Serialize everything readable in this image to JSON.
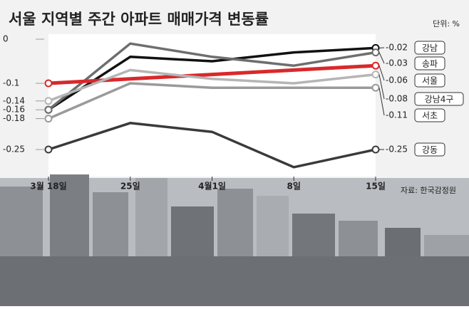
{
  "chart_data": {
    "type": "line",
    "title": "서울 지역별 주간 아파트 매매가격 변동률",
    "unit": "단위: %",
    "source": "자료: 한국감정원",
    "categories": [
      "3월 18일",
      "25일",
      "4월1일",
      "8일",
      "15일"
    ],
    "ylim": [
      -0.3,
      0
    ],
    "yticks": [
      0,
      -0.1,
      -0.14,
      -0.16,
      -0.18,
      -0.25
    ],
    "series": [
      {
        "name": "강남",
        "color": "#111111",
        "values": [
          -0.16,
          -0.04,
          -0.05,
          -0.03,
          -0.02
        ]
      },
      {
        "name": "송파",
        "color": "#6e6e6e",
        "values": [
          -0.16,
          -0.01,
          -0.04,
          -0.06,
          -0.03
        ]
      },
      {
        "name": "서울",
        "color": "#d8292b",
        "values": [
          -0.1,
          -0.09,
          -0.08,
          -0.07,
          -0.06
        ]
      },
      {
        "name": "강남4구",
        "color": "#b5b5b5",
        "values": [
          -0.14,
          -0.07,
          -0.09,
          -0.1,
          -0.08
        ]
      },
      {
        "name": "서초",
        "color": "#9a9a9a",
        "values": [
          -0.18,
          -0.1,
          -0.11,
          -0.11,
          -0.11
        ]
      },
      {
        "name": "강동",
        "color": "#3a3a3a",
        "values": [
          -0.25,
          -0.19,
          -0.21,
          -0.29,
          -0.25
        ]
      }
    ]
  }
}
